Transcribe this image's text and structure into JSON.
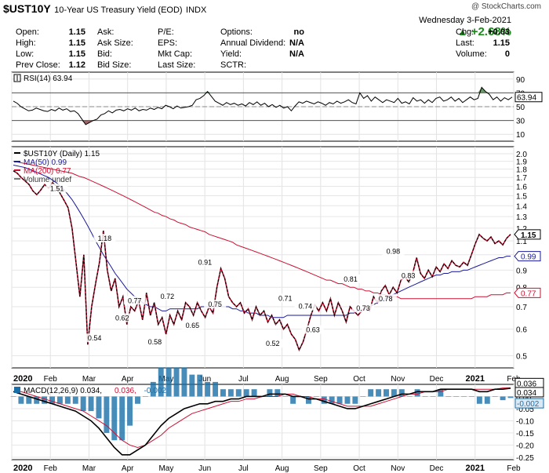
{
  "header": {
    "symbol": "$UST10Y",
    "description": "10-Year US Treasury Yield (EOD)",
    "index_tag": "INDX",
    "copyright": "@ StockCharts.com",
    "date": "Wednesday  3-Feb-2021",
    "change_pct": "+2.68%",
    "change_color": "#1a8a1a",
    "rows": [
      {
        "l1": "Open:",
        "v1": "1.15",
        "l2": "Ask:",
        "l3": "P/E:",
        "l4": "Options:",
        "v4": "no",
        "l5": "Chg:",
        "v5": "+0.03"
      },
      {
        "l1": "High:",
        "v1": "1.15",
        "l2": "Ask Size:",
        "l3": "EPS:",
        "l4": "Annual Dividend:",
        "v4": "N/A",
        "l5": "Last:",
        "v5": "1.15"
      },
      {
        "l1": "Low:",
        "v1": "1.15",
        "l2": "Bid:",
        "l3": "Mkt Cap:",
        "l4": "Yield:",
        "v4": "N/A",
        "l5": "Volume:",
        "v5": "0"
      },
      {
        "l1": "Prev Close:",
        "v1": "1.12",
        "l2": "Bid Size:",
        "l3": "Last Size:",
        "l4": "SCTR:",
        "v4": "",
        "l5": "",
        "v5": ""
      }
    ]
  },
  "chart_data": [
    {
      "type": "line",
      "panel": "rsi",
      "legend": "RSI(14) 63.94",
      "last_value_label": "63.94",
      "yticks": [
        10,
        30,
        50,
        70,
        90
      ],
      "ylim": [
        0,
        100
      ],
      "overbought": 70,
      "oversold": 30,
      "values": [
        58,
        55,
        50,
        47,
        44,
        45,
        48,
        46,
        44,
        43,
        46,
        44,
        48,
        45,
        47,
        43,
        44,
        40,
        32,
        24,
        27,
        30,
        32,
        38,
        40,
        44,
        41,
        45,
        46,
        44,
        47,
        45,
        48,
        44,
        46,
        45,
        48,
        46,
        49,
        47,
        52,
        50,
        47,
        51,
        48,
        49,
        50,
        52,
        60,
        62,
        66,
        72,
        65,
        58,
        55,
        52,
        56,
        53,
        55,
        52,
        54,
        51,
        56,
        53,
        57,
        52,
        55,
        50,
        53,
        49,
        52,
        48,
        50,
        44,
        51,
        57,
        55,
        58,
        56,
        54,
        57,
        55,
        52,
        56,
        54,
        58,
        55,
        57,
        60,
        56,
        54,
        70,
        62,
        66,
        58,
        64,
        60,
        56,
        60,
        58,
        56,
        62,
        55,
        57,
        54,
        63,
        58,
        60,
        55,
        60,
        56,
        62,
        64,
        58,
        60,
        64,
        58,
        62,
        56,
        60,
        64,
        60,
        62,
        78,
        72,
        68,
        60,
        64,
        58,
        63,
        60,
        63.94
      ]
    },
    {
      "type": "line",
      "panel": "price",
      "title": "$UST10Y (Daily) 1.15",
      "legend": [
        {
          "label": "$UST10Y (Daily) 1.15",
          "color": "#000000"
        },
        {
          "label": "MA(50) 0.99",
          "color": "#1a1a99"
        },
        {
          "label": "MA(200) 0.77",
          "color": "#cc1133"
        },
        {
          "label": "Volume undef",
          "color": "#777777"
        }
      ],
      "yscale": "log",
      "ylim": [
        0.46,
        2.1
      ],
      "yticks": [
        "2.0",
        "1.9",
        "1.8",
        "1.7",
        "1.6",
        "1.5",
        "1.4",
        "1.3",
        "1.2",
        "1.1",
        "1.0",
        "0.9",
        "0.8",
        "0.7",
        "0.6",
        "0.5"
      ],
      "x_tick_labels": [
        "2020",
        "Feb",
        "Mar",
        "Apr",
        "May",
        "Jun",
        "Jul",
        "Aug",
        "Sep",
        "Oct",
        "Nov",
        "Dec",
        "2021",
        "Feb"
      ],
      "last_labels": [
        {
          "text": "1.15",
          "color": "#000000",
          "value": 1.15
        },
        {
          "text": "0.99",
          "color": "#1a1a99",
          "value": 0.99
        },
        {
          "text": "0.77",
          "color": "#cc1133",
          "value": 0.77
        }
      ],
      "annotations": [
        {
          "text": "1.51",
          "x": 0.09,
          "y": 1.51
        },
        {
          "text": "1.18",
          "x": 0.185,
          "y": 1.18
        },
        {
          "text": "0.54",
          "x": 0.165,
          "y": 0.54
        },
        {
          "text": "0.77",
          "x": 0.245,
          "y": 0.77
        },
        {
          "text": "0.62",
          "x": 0.22,
          "y": 0.62
        },
        {
          "text": "0.58",
          "x": 0.285,
          "y": 0.58
        },
        {
          "text": "0.72",
          "x": 0.31,
          "y": 0.72
        },
        {
          "text": "0.65",
          "x": 0.36,
          "y": 0.65
        },
        {
          "text": "0.91",
          "x": 0.385,
          "y": 0.91
        },
        {
          "text": "0.75",
          "x": 0.405,
          "y": 0.75
        },
        {
          "text": "0.71",
          "x": 0.545,
          "y": 0.71
        },
        {
          "text": "0.74",
          "x": 0.585,
          "y": 0.74
        },
        {
          "text": "0.52",
          "x": 0.52,
          "y": 0.52
        },
        {
          "text": "0.63",
          "x": 0.6,
          "y": 0.63
        },
        {
          "text": "0.81",
          "x": 0.675,
          "y": 0.81
        },
        {
          "text": "0.73",
          "x": 0.7,
          "y": 0.73
        },
        {
          "text": "0.98",
          "x": 0.76,
          "y": 0.98
        },
        {
          "text": "0.78",
          "x": 0.745,
          "y": 0.78
        },
        {
          "text": "0.83",
          "x": 0.79,
          "y": 0.83
        }
      ],
      "series": [
        {
          "name": "$UST10Y (Daily)",
          "color": "#000000",
          "values": [
            1.78,
            1.75,
            1.7,
            1.66,
            1.62,
            1.55,
            1.51,
            1.56,
            1.62,
            1.58,
            1.64,
            1.6,
            1.52,
            1.45,
            1.38,
            1.2,
            0.95,
            0.75,
            1.0,
            0.54,
            0.7,
            0.82,
            0.95,
            1.18,
            0.9,
            0.78,
            0.85,
            0.7,
            0.75,
            0.62,
            0.7,
            0.68,
            0.73,
            0.64,
            0.77,
            0.66,
            0.72,
            0.62,
            0.65,
            0.58,
            0.66,
            0.62,
            0.68,
            0.64,
            0.72,
            0.7,
            0.66,
            0.72,
            0.68,
            0.65,
            0.7,
            0.67,
            0.8,
            0.91,
            0.85,
            0.75,
            0.72,
            0.7,
            0.72,
            0.67,
            0.69,
            0.64,
            0.7,
            0.66,
            0.68,
            0.63,
            0.66,
            0.62,
            0.64,
            0.6,
            0.62,
            0.58,
            0.56,
            0.52,
            0.55,
            0.6,
            0.66,
            0.71,
            0.68,
            0.72,
            0.68,
            0.74,
            0.66,
            0.72,
            0.68,
            0.63,
            0.7,
            0.68,
            0.66,
            0.68,
            0.7,
            0.68,
            0.75,
            0.72,
            0.78,
            0.81,
            0.76,
            0.8,
            0.77,
            0.84,
            0.86,
            0.83,
            0.88,
            0.98,
            0.88,
            0.85,
            0.9,
            0.86,
            0.92,
            0.89,
            0.94,
            0.91,
            0.96,
            0.93,
            0.92,
            0.95,
            0.93,
            1.0,
            1.08,
            1.15,
            1.12,
            1.1,
            1.13,
            1.08,
            1.1,
            1.07,
            1.12,
            1.15
          ]
        },
        {
          "name": "MA(50)",
          "color": "#1a1a99",
          "values": [
            1.85,
            1.84,
            1.83,
            1.82,
            1.8,
            1.78,
            1.76,
            1.74,
            1.72,
            1.7,
            1.67,
            1.64,
            1.6,
            1.56,
            1.51,
            1.46,
            1.4,
            1.34,
            1.28,
            1.22,
            1.16,
            1.1,
            1.05,
            1.0,
            0.96,
            0.92,
            0.88,
            0.85,
            0.82,
            0.79,
            0.77,
            0.75,
            0.74,
            0.72,
            0.71,
            0.7,
            0.7,
            0.69,
            0.68,
            0.68,
            0.69,
            0.69,
            0.69,
            0.69,
            0.69,
            0.69,
            0.69,
            0.69,
            0.7,
            0.7,
            0.7,
            0.7,
            0.7,
            0.7,
            0.7,
            0.7,
            0.69,
            0.69,
            0.68,
            0.68,
            0.67,
            0.67,
            0.67,
            0.66,
            0.66,
            0.66,
            0.65,
            0.65,
            0.65,
            0.65,
            0.66,
            0.66,
            0.66,
            0.66,
            0.66,
            0.66,
            0.66,
            0.66,
            0.66,
            0.66,
            0.66,
            0.66,
            0.66,
            0.66,
            0.66,
            0.66,
            0.67,
            0.67,
            0.68,
            0.68,
            0.69,
            0.7,
            0.71,
            0.72,
            0.73,
            0.74,
            0.75,
            0.76,
            0.77,
            0.78,
            0.79,
            0.8,
            0.81,
            0.82,
            0.83,
            0.84,
            0.85,
            0.86,
            0.87,
            0.87,
            0.88,
            0.88,
            0.89,
            0.89,
            0.89,
            0.9,
            0.9,
            0.91,
            0.92,
            0.93,
            0.94,
            0.95,
            0.96,
            0.97,
            0.98,
            0.98,
            0.99,
            0.99
          ]
        },
        {
          "name": "MA(200)",
          "color": "#cc1133",
          "values": [
            1.9,
            1.89,
            1.88,
            1.87,
            1.86,
            1.85,
            1.84,
            1.83,
            1.82,
            1.81,
            1.8,
            1.79,
            1.78,
            1.77,
            1.76,
            1.75,
            1.73,
            1.71,
            1.7,
            1.68,
            1.66,
            1.64,
            1.62,
            1.6,
            1.58,
            1.56,
            1.54,
            1.52,
            1.5,
            1.48,
            1.46,
            1.44,
            1.42,
            1.4,
            1.38,
            1.36,
            1.34,
            1.33,
            1.31,
            1.3,
            1.28,
            1.27,
            1.25,
            1.24,
            1.23,
            1.21,
            1.2,
            1.19,
            1.18,
            1.17,
            1.15,
            1.14,
            1.13,
            1.12,
            1.11,
            1.1,
            1.09,
            1.07,
            1.06,
            1.05,
            1.04,
            1.03,
            1.02,
            1.01,
            1.0,
            0.99,
            0.98,
            0.97,
            0.96,
            0.95,
            0.94,
            0.93,
            0.92,
            0.91,
            0.9,
            0.89,
            0.88,
            0.87,
            0.86,
            0.85,
            0.84,
            0.84,
            0.83,
            0.82,
            0.82,
            0.81,
            0.8,
            0.8,
            0.79,
            0.79,
            0.78,
            0.78,
            0.77,
            0.77,
            0.76,
            0.76,
            0.75,
            0.75,
            0.75,
            0.74,
            0.74,
            0.74,
            0.74,
            0.74,
            0.74,
            0.74,
            0.74,
            0.74,
            0.74,
            0.74,
            0.74,
            0.74,
            0.74,
            0.74,
            0.74,
            0.74,
            0.74,
            0.74,
            0.75,
            0.75,
            0.75,
            0.75,
            0.76,
            0.76,
            0.76,
            0.76,
            0.77,
            0.77
          ]
        }
      ]
    },
    {
      "type": "line",
      "panel": "macd",
      "legend_parts": [
        {
          "text": "MACD(12,26,9) 0.034,",
          "color": "#000000"
        },
        {
          "text": "0.036,",
          "color": "#cc1133"
        },
        {
          "text": "-0.002",
          "color": "#1a6fa8"
        }
      ],
      "ylim": [
        -0.26,
        0.05
      ],
      "yticks": [
        "0.00",
        "-0.05",
        "-0.10",
        "-0.15",
        "-0.20",
        "-0.25"
      ],
      "last_labels": [
        {
          "text": "0.036",
          "color": "#000000",
          "value": 0.036
        },
        {
          "text": "0.034",
          "color": "#000000",
          "value": 0.034
        },
        {
          "text": "-0.002",
          "color": "#1a6fa8",
          "value": -0.002
        }
      ],
      "x_tick_labels": [
        "2020",
        "Feb",
        "Mar",
        "Apr",
        "May",
        "Jun",
        "Jul",
        "Aug",
        "Sep",
        "Oct",
        "Nov",
        "Dec",
        "2021",
        "Feb"
      ],
      "series": [
        {
          "name": "MACD",
          "color": "#000000",
          "values": [
            0.02,
            0.01,
            0.0,
            -0.01,
            -0.02,
            -0.03,
            -0.04,
            -0.05,
            -0.06,
            -0.08,
            -0.1,
            -0.13,
            -0.17,
            -0.21,
            -0.24,
            -0.24,
            -0.22,
            -0.2,
            -0.16,
            -0.12,
            -0.09,
            -0.07,
            -0.05,
            -0.04,
            -0.03,
            -0.03,
            -0.02,
            -0.02,
            -0.01,
            -0.01,
            0.0,
            0.0,
            0.0,
            0.01,
            0.01,
            0.01,
            0.0,
            0.0,
            -0.01,
            -0.01,
            -0.02,
            -0.03,
            -0.04,
            -0.05,
            -0.05,
            -0.04,
            -0.03,
            -0.02,
            -0.01,
            0.0,
            0.01,
            0.01,
            0.02,
            0.02,
            0.02,
            0.03,
            0.03,
            0.03,
            0.03,
            0.03,
            0.02,
            0.02,
            0.03,
            0.03,
            0.034
          ]
        },
        {
          "name": "Signal",
          "color": "#cc1133",
          "values": [
            0.02,
            0.02,
            0.01,
            0.0,
            -0.01,
            -0.02,
            -0.03,
            -0.04,
            -0.05,
            -0.06,
            -0.08,
            -0.1,
            -0.12,
            -0.15,
            -0.18,
            -0.2,
            -0.21,
            -0.2,
            -0.18,
            -0.16,
            -0.13,
            -0.11,
            -0.09,
            -0.07,
            -0.06,
            -0.05,
            -0.04,
            -0.03,
            -0.02,
            -0.02,
            -0.01,
            -0.01,
            0.0,
            0.0,
            0.0,
            0.01,
            0.01,
            0.0,
            0.0,
            -0.01,
            -0.01,
            -0.02,
            -0.03,
            -0.04,
            -0.04,
            -0.04,
            -0.04,
            -0.03,
            -0.02,
            -0.01,
            0.0,
            0.01,
            0.01,
            0.02,
            0.02,
            0.02,
            0.03,
            0.03,
            0.03,
            0.03,
            0.03,
            0.03,
            0.03,
            0.035,
            0.036
          ]
        }
      ]
    }
  ]
}
